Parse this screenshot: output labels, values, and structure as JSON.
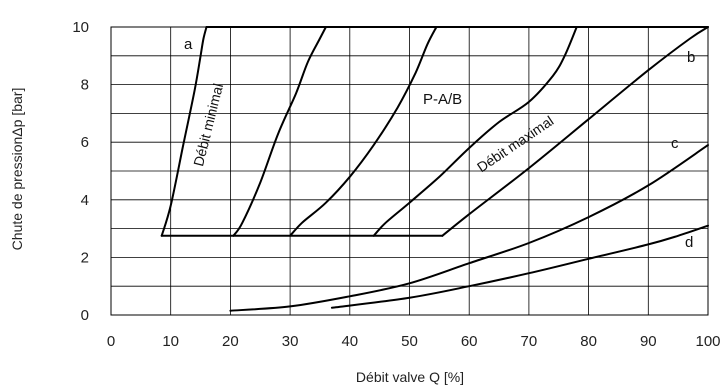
{
  "chart_data": {
    "type": "line",
    "xlabel": "Débit valve Q [%]",
    "ylabel": "Chute de pressionΔp [bar]",
    "xlim": [
      0,
      100
    ],
    "ylim": [
      0,
      10
    ],
    "x_ticks": [
      "0",
      "10",
      "20",
      "30",
      "40",
      "50",
      "60",
      "70",
      "80",
      "90",
      "100"
    ],
    "y_ticks": [
      "0",
      "2",
      "4",
      "6",
      "8",
      "10"
    ],
    "grid": true,
    "annotations": {
      "a": "a",
      "b": "b",
      "c": "c",
      "d": "d",
      "pab": "P-A/B",
      "min": "Débit   minimal",
      "max": "Débit   maximal"
    },
    "series": [
      {
        "id": "a",
        "x": [
          8.5,
          10,
          12,
          14,
          15,
          15.5,
          16
        ],
        "y": [
          2.75,
          3.8,
          5.8,
          7.8,
          9.0,
          9.6,
          10
        ]
      },
      {
        "id": "b",
        "x": [
          55.5,
          60,
          70,
          80,
          90,
          97,
          100
        ],
        "y": [
          2.75,
          3.5,
          5.1,
          6.8,
          8.5,
          9.6,
          10
        ]
      },
      {
        "id": "c",
        "x": [
          20,
          30,
          40,
          50,
          60,
          70,
          80,
          90,
          100
        ],
        "y": [
          0.15,
          0.3,
          0.65,
          1.1,
          1.8,
          2.5,
          3.4,
          4.5,
          5.9
        ]
      },
      {
        "id": "d",
        "x": [
          37,
          50,
          60,
          70,
          80,
          90,
          95,
          100
        ],
        "y": [
          0.25,
          0.6,
          1.0,
          1.45,
          1.95,
          2.45,
          2.75,
          3.1
        ]
      },
      {
        "id": "P-A/B 1",
        "x": [
          20.5,
          22,
          25,
          28,
          31,
          33,
          35,
          36
        ],
        "y": [
          2.75,
          3.2,
          4.6,
          6.3,
          7.7,
          8.8,
          9.6,
          10
        ]
      },
      {
        "id": "P-A/B 2",
        "x": [
          30,
          32,
          36,
          40,
          44,
          48,
          51,
          53,
          54.5
        ],
        "y": [
          2.75,
          3.2,
          3.9,
          4.8,
          5.9,
          7.2,
          8.4,
          9.4,
          10
        ]
      },
      {
        "id": "P-A/B 3",
        "x": [
          44,
          46,
          50,
          55,
          60,
          65,
          70,
          74,
          76,
          78
        ],
        "y": [
          2.75,
          3.2,
          3.9,
          4.8,
          5.8,
          6.7,
          7.4,
          8.3,
          9.0,
          10
        ]
      },
      {
        "id": "floor",
        "x": [
          8.5,
          55.5
        ],
        "y": [
          2.75,
          2.75
        ]
      },
      {
        "id": "top",
        "x": [
          16,
          100
        ],
        "y": [
          10,
          10
        ]
      }
    ]
  }
}
